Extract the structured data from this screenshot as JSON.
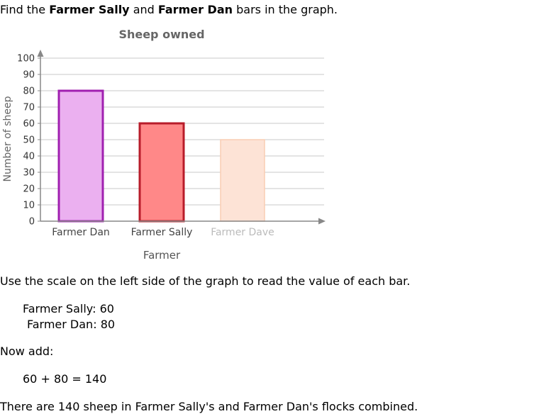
{
  "intro": {
    "prefix": "Find the ",
    "name_a": "Farmer Sally",
    "middle": " and ",
    "name_b": "Farmer Dan",
    "suffix": " bars in the graph."
  },
  "chart_data": {
    "type": "bar",
    "title": "Sheep owned",
    "xlabel": "Farmer",
    "ylabel": "Number of sheep",
    "categories": [
      "Farmer Dan",
      "Farmer Sally",
      "Farmer Dave"
    ],
    "values": [
      80,
      60,
      50
    ],
    "ylim": [
      0,
      100
    ],
    "yticks": [
      0,
      10,
      20,
      30,
      40,
      50,
      60,
      70,
      80,
      90,
      100
    ],
    "grid": true,
    "colors": {
      "fills": [
        "#ebb0f0",
        "#ff8888",
        "#fde3d6"
      ],
      "strokes": [
        "#a020b0",
        "#b81c2a",
        "#f9cdb4"
      ],
      "label_colors": [
        "#444444",
        "#444444",
        "#bbbbbb"
      ]
    }
  },
  "instruction": "Use the scale on the left side of the graph to read the value of each bar.",
  "readings": [
    {
      "name": "Farmer Sally:",
      "value": "60"
    },
    {
      "name": "Farmer Dan:",
      "value": "80"
    }
  ],
  "now_add": "Now add:",
  "equation": "60 + 80 = 140",
  "conclusion": "There are 140 sheep in Farmer Sally's and Farmer Dan's flocks combined."
}
